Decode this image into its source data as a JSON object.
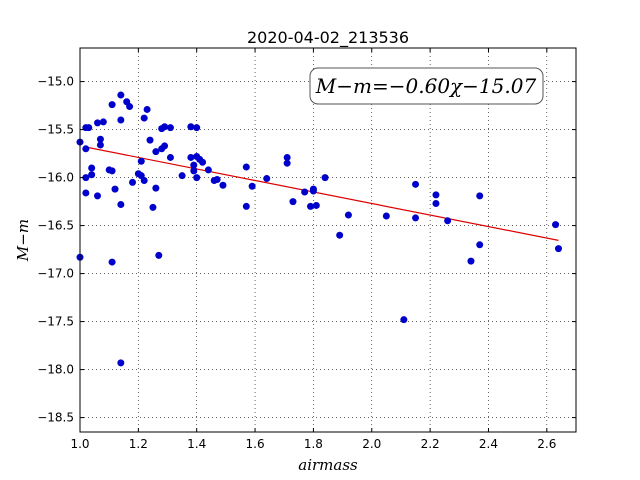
{
  "chart_data": {
    "type": "scatter",
    "title": "2020-04-02_213536",
    "xlabel": "airmass",
    "ylabel": "M−m",
    "xlim": [
      1.0,
      2.7
    ],
    "ylim": [
      -18.65,
      -14.65
    ],
    "x_ticks": [
      "1.0",
      "1.2",
      "1.4",
      "1.6",
      "1.8",
      "2.0",
      "2.2",
      "2.4",
      "2.6"
    ],
    "y_ticks": [
      "−15.0",
      "−15.5",
      "−16.0",
      "−16.5",
      "−17.0",
      "−17.5",
      "−18.0",
      "−18.5"
    ],
    "grid": true,
    "annotation": "M−m=−0.60χ−15.07",
    "points_color": "#0000cc",
    "fit_color": "#dd0000",
    "fit": {
      "slope": -0.6,
      "intercept": -15.07,
      "x_range": [
        1.03,
        2.64
      ]
    },
    "points": [
      [
        1.0,
        -15.63
      ],
      [
        1.0,
        -16.83
      ],
      [
        1.02,
        -15.48
      ],
      [
        1.02,
        -15.7
      ],
      [
        1.02,
        -16.0
      ],
      [
        1.02,
        -16.16
      ],
      [
        1.03,
        -15.48
      ],
      [
        1.04,
        -15.97
      ],
      [
        1.04,
        -15.9
      ],
      [
        1.06,
        -15.43
      ],
      [
        1.06,
        -16.19
      ],
      [
        1.07,
        -15.6
      ],
      [
        1.07,
        -15.66
      ],
      [
        1.08,
        -15.42
      ],
      [
        1.1,
        -15.92
      ],
      [
        1.11,
        -15.24
      ],
      [
        1.11,
        -15.93
      ],
      [
        1.11,
        -16.88
      ],
      [
        1.12,
        -16.12
      ],
      [
        1.14,
        -15.14
      ],
      [
        1.14,
        -15.4
      ],
      [
        1.14,
        -16.28
      ],
      [
        1.14,
        -17.93
      ],
      [
        1.16,
        -15.21
      ],
      [
        1.17,
        -15.26
      ],
      [
        1.18,
        -16.05
      ],
      [
        1.2,
        -15.96
      ],
      [
        1.21,
        -15.83
      ],
      [
        1.21,
        -15.98
      ],
      [
        1.22,
        -15.38
      ],
      [
        1.22,
        -16.03
      ],
      [
        1.23,
        -15.29
      ],
      [
        1.24,
        -15.61
      ],
      [
        1.25,
        -16.31
      ],
      [
        1.26,
        -15.73
      ],
      [
        1.26,
        -16.11
      ],
      [
        1.27,
        -16.81
      ],
      [
        1.28,
        -15.49
      ],
      [
        1.28,
        -15.7
      ],
      [
        1.29,
        -15.47
      ],
      [
        1.29,
        -15.67
      ],
      [
        1.31,
        -15.48
      ],
      [
        1.31,
        -15.79
      ],
      [
        1.35,
        -15.98
      ],
      [
        1.38,
        -15.47
      ],
      [
        1.38,
        -15.79
      ],
      [
        1.39,
        -15.87
      ],
      [
        1.39,
        -15.93
      ],
      [
        1.4,
        -15.48
      ],
      [
        1.4,
        -15.78
      ],
      [
        1.4,
        -16.0
      ],
      [
        1.41,
        -15.81
      ],
      [
        1.42,
        -15.84
      ],
      [
        1.44,
        -15.92
      ],
      [
        1.46,
        -16.03
      ],
      [
        1.47,
        -16.02
      ],
      [
        1.49,
        -16.08
      ],
      [
        1.57,
        -15.89
      ],
      [
        1.57,
        -16.3
      ],
      [
        1.59,
        -16.09
      ],
      [
        1.64,
        -16.01
      ],
      [
        1.71,
        -15.79
      ],
      [
        1.71,
        -15.85
      ],
      [
        1.73,
        -16.25
      ],
      [
        1.77,
        -16.15
      ],
      [
        1.79,
        -16.3
      ],
      [
        1.8,
        -16.12
      ],
      [
        1.8,
        -16.14
      ],
      [
        1.81,
        -16.29
      ],
      [
        1.84,
        -16.0
      ],
      [
        1.89,
        -16.6
      ],
      [
        1.92,
        -16.39
      ],
      [
        2.05,
        -16.4
      ],
      [
        2.11,
        -17.48
      ],
      [
        2.15,
        -16.07
      ],
      [
        2.15,
        -16.42
      ],
      [
        2.22,
        -16.18
      ],
      [
        2.22,
        -16.27
      ],
      [
        2.26,
        -16.45
      ],
      [
        2.34,
        -16.87
      ],
      [
        2.37,
        -16.7
      ],
      [
        2.37,
        -16.19
      ],
      [
        2.63,
        -16.49
      ],
      [
        2.64,
        -16.74
      ]
    ]
  }
}
